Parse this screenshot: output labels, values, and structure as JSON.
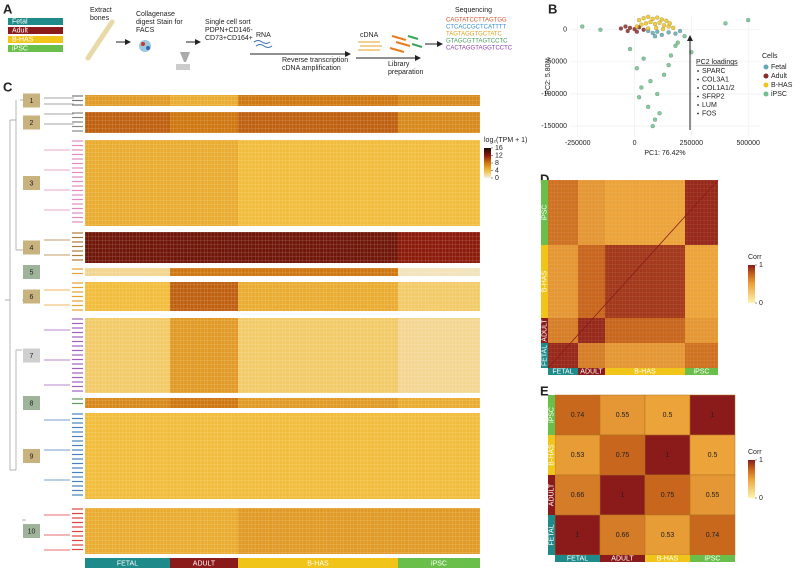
{
  "panel_a": {
    "label": "A",
    "legend": [
      "Fetal",
      "Adult",
      "B-HAS",
      "iPSC"
    ],
    "legend_colors": [
      "#1f8a8a",
      "#8b1a1a",
      "#f0c419",
      "#6abf4b"
    ],
    "extract": [
      "Extract",
      "bones"
    ],
    "digest": [
      "Collagenase",
      "digest Stain for",
      "FACS"
    ],
    "sort": [
      "Single cell sort",
      "PDPN+CD146-",
      "CD73+CD164+"
    ],
    "rna": "RNA",
    "reverse": [
      "Reverse transcription",
      "cDNA amplification"
    ],
    "cdna": "cDNA",
    "library": [
      "Library",
      "preparation"
    ],
    "sequencing": "Sequencing",
    "reads": [
      "CAGTATCCTTAGTGG",
      "CTCACCGCTCATTTT",
      "TAGTAGGTGCTATC",
      "GTAGCGTTAGTCCTC",
      "CACTAGGTAGGTCCTC"
    ]
  },
  "chart_data": [
    {
      "type": "scatter",
      "label": "B",
      "xlabel": "PC1: 76.42%",
      "ylabel": "PC2: 5.80%",
      "xlim": [
        -284000,
        552000
      ],
      "ylim": [
        -167000,
        23000
      ],
      "xticks": [
        -250000,
        0,
        250000,
        500000
      ],
      "yticks": [
        -150000,
        -100000,
        -50000,
        0
      ],
      "grid": true,
      "legend_title": "Cells",
      "legend": "right",
      "annotation_title": "PC2 loadings",
      "annotation_items": [
        "SPARC",
        "COL3A1",
        "COL1A1/2",
        "SFRP2",
        "LUM",
        "FOS"
      ],
      "series": [
        {
          "name": "Fetal",
          "color": "#5fa8b5",
          "x": [
            60000,
            80000,
            100000,
            120000,
            150000,
            180000,
            200000,
            90000
          ],
          "values": [
            -2000,
            -5000,
            -3000,
            -8000,
            -4000,
            -6000,
            -2000,
            -10000
          ]
        },
        {
          "name": "Adult",
          "color": "#8b2a2a",
          "x": [
            -60000,
            -40000,
            -20000,
            0,
            20000,
            -30000,
            10000,
            40000
          ],
          "values": [
            2000,
            5000,
            3000,
            1000,
            4000,
            -2000,
            -3000,
            0
          ]
        },
        {
          "name": "B-HAS",
          "color": "#f0c419",
          "x": [
            20000,
            40000,
            60000,
            80000,
            100000,
            120000,
            140000,
            30000,
            50000,
            70000,
            90000,
            110000,
            130000,
            150000,
            170000,
            10000,
            60000,
            95000,
            125000,
            155000
          ],
          "values": [
            15000,
            18000,
            20000,
            17000,
            19000,
            16000,
            14000,
            8000,
            10000,
            12000,
            9000,
            11000,
            7000,
            5000,
            3000,
            5000,
            2000,
            3000,
            1000,
            10000
          ]
        },
        {
          "name": "iPSC",
          "color": "#6cc08b",
          "x": [
            -230000,
            -20000,
            10000,
            30000,
            60000,
            80000,
            100000,
            130000,
            160000,
            190000,
            220000,
            40000,
            70000,
            110000,
            150000,
            180000,
            400000,
            500000,
            -150000,
            250000,
            20000,
            90000
          ],
          "values": [
            5000,
            -30000,
            -60000,
            -90000,
            -120000,
            -150000,
            -100000,
            -70000,
            -40000,
            -20000,
            -10000,
            -45000,
            -80000,
            -130000,
            -55000,
            -25000,
            10000,
            15000,
            0,
            -35000,
            -105000,
            -140000
          ]
        }
      ]
    },
    {
      "type": "heatmap",
      "label": "C",
      "colorbar_title": "log₂(TPM + 1)",
      "row_groups": [
        "1",
        "2",
        "3",
        "4",
        "5",
        "6",
        "7",
        "8",
        "9",
        "10"
      ],
      "categories": [
        "FETAL",
        "ADULT",
        "B-HAS",
        "iPSC"
      ],
      "category_colors": [
        "#1f8a8a",
        "#8b1a1a",
        "#f0c419",
        "#6abf4b"
      ],
      "values": [
        [
          6,
          5,
          8,
          7
        ],
        [
          9,
          8,
          9,
          7
        ],
        [
          5,
          5,
          4,
          4
        ],
        [
          13,
          13,
          13,
          12
        ],
        [
          2,
          8,
          8,
          1
        ],
        [
          4,
          9,
          5,
          3
        ],
        [
          3,
          6,
          3,
          2
        ],
        [
          7,
          8,
          6,
          5
        ],
        [
          4,
          4,
          4,
          4
        ],
        [
          5,
          5,
          6,
          6
        ]
      ],
      "zlim": [
        0,
        16
      ],
      "zticks": [
        16,
        12,
        8,
        4,
        0
      ],
      "colorscale": [
        [
          0,
          "#f3efe6"
        ],
        [
          0.25,
          "#f2bd3c"
        ],
        [
          0.5,
          "#cf7710"
        ],
        [
          0.75,
          "#8b1a0a"
        ],
        [
          1,
          "#1a0a00"
        ]
      ]
    },
    {
      "type": "heatmap",
      "label": "D",
      "colorbar_title": "Corr",
      "rows": [
        "iPSC",
        "B-HAS",
        "ADULT",
        "FETAL"
      ],
      "columns": [
        "FETAL",
        "ADULT",
        "B-HAS",
        "iPSC"
      ],
      "category_colors": {
        "FETAL": "#1f8a8a",
        "ADULT": "#8b1a1a",
        "B-HAS": "#f0c419",
        "iPSC": "#6abf4b"
      },
      "values": [
        [
          0.7,
          0.55,
          0.5,
          0.95
        ],
        [
          0.55,
          0.75,
          0.9,
          0.5
        ],
        [
          0.65,
          0.95,
          0.75,
          0.55
        ],
        [
          0.95,
          0.65,
          0.55,
          0.7
        ]
      ],
      "zlim": [
        0,
        1
      ],
      "zticks": [
        1,
        0
      ],
      "colorscale": [
        [
          0,
          "#fff2b0"
        ],
        [
          0.5,
          "#eba33a"
        ],
        [
          0.75,
          "#c7661c"
        ],
        [
          1,
          "#8b1a1a"
        ]
      ]
    },
    {
      "type": "heatmap",
      "label": "E",
      "colorbar_title": "Corr",
      "rows": [
        "iPSC",
        "B-HAS",
        "ADULT",
        "FETAL"
      ],
      "columns": [
        "FETAL",
        "ADULT",
        "B-HAS",
        "iPSC"
      ],
      "category_colors": {
        "FETAL": "#1f8a8a",
        "ADULT": "#8b1a1a",
        "B-HAS": "#f0c419",
        "iPSC": "#6abf4b"
      },
      "values": [
        [
          0.74,
          0.55,
          0.5,
          1
        ],
        [
          0.53,
          0.75,
          1,
          0.5
        ],
        [
          0.66,
          1,
          0.75,
          0.55
        ],
        [
          1,
          0.66,
          0.53,
          0.74
        ]
      ],
      "zlim": [
        0,
        1
      ],
      "zticks": [
        1,
        0
      ],
      "show_values": true,
      "colorscale": [
        [
          0,
          "#fff2b0"
        ],
        [
          0.5,
          "#eba33a"
        ],
        [
          0.75,
          "#c7661c"
        ],
        [
          1,
          "#8b1a1a"
        ]
      ]
    }
  ]
}
